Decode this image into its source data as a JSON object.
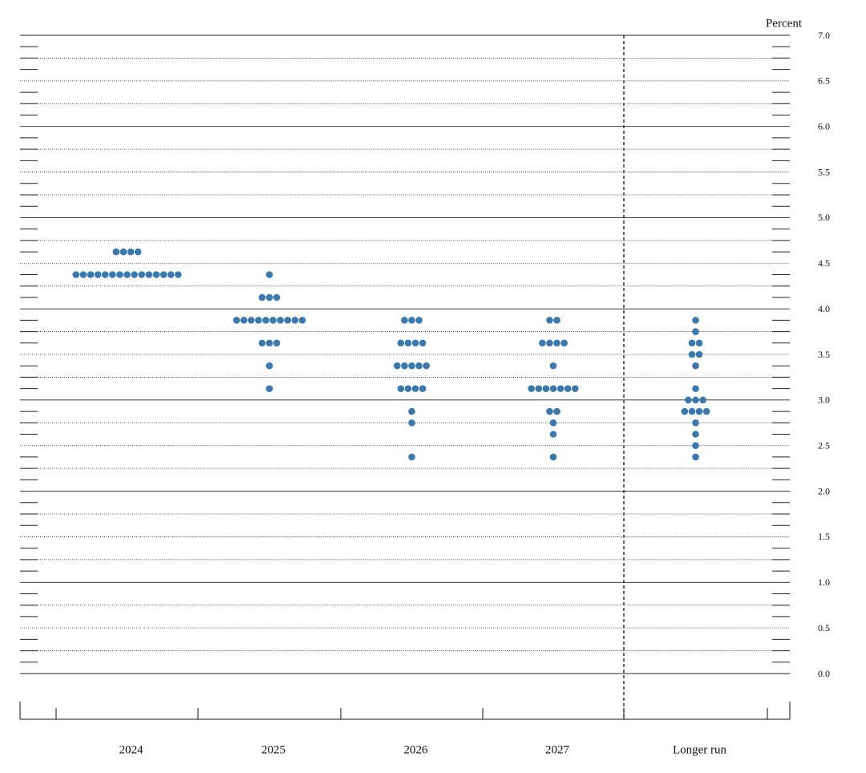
{
  "chart_data": {
    "type": "dot",
    "y_axis_label": "Percent",
    "categories": [
      "2024",
      "2025",
      "2026",
      "2027",
      "Longer run"
    ],
    "color": "#3a78b0",
    "ylim": [
      0,
      7
    ],
    "yticks": [
      {
        "value": 0,
        "label": "0.0"
      },
      {
        "value": 0.5,
        "label": "0.5"
      },
      {
        "value": 1,
        "label": "1.0"
      },
      {
        "value": 1.5,
        "label": "1.5"
      },
      {
        "value": 2,
        "label": "2.0"
      },
      {
        "value": 2.5,
        "label": "2.5"
      },
      {
        "value": 3,
        "label": "3.0"
      },
      {
        "value": 3.5,
        "label": "3.5"
      },
      {
        "value": 4,
        "label": "4.0"
      },
      {
        "value": 4.5,
        "label": "4.5"
      },
      {
        "value": 5,
        "label": "5.0"
      },
      {
        "value": 5.5,
        "label": "5.5"
      },
      {
        "value": 6,
        "label": "6.0"
      },
      {
        "value": 6.5,
        "label": "6.5"
      },
      {
        "value": 7,
        "label": "7.0"
      }
    ],
    "values": [
      [
        4.625,
        4.625,
        4.625,
        4.625,
        4.375,
        4.375,
        4.375,
        4.375,
        4.375,
        4.375,
        4.375,
        4.375,
        4.375,
        4.375,
        4.375,
        4.375,
        4.375,
        4.375,
        4.375
      ],
      [
        4.375,
        4.125,
        4.125,
        4.125,
        3.875,
        3.875,
        3.875,
        3.875,
        3.875,
        3.875,
        3.875,
        3.875,
        3.875,
        3.875,
        3.625,
        3.625,
        3.625,
        3.375,
        3.125
      ],
      [
        3.875,
        3.875,
        3.875,
        3.625,
        3.625,
        3.625,
        3.625,
        3.375,
        3.375,
        3.375,
        3.375,
        3.375,
        3.125,
        3.125,
        3.125,
        3.125,
        2.875,
        2.75,
        2.375
      ],
      [
        3.875,
        3.875,
        3.625,
        3.625,
        3.625,
        3.625,
        3.375,
        3.125,
        3.125,
        3.125,
        3.125,
        3.125,
        3.125,
        3.125,
        2.875,
        2.875,
        2.75,
        2.625,
        2.375
      ],
      [
        3.875,
        3.75,
        3.625,
        3.625,
        3.5,
        3.5,
        3.375,
        3.125,
        3,
        3,
        3,
        2.875,
        2.875,
        2.875,
        2.875,
        2.75,
        2.625,
        2.5,
        2.375
      ]
    ]
  }
}
